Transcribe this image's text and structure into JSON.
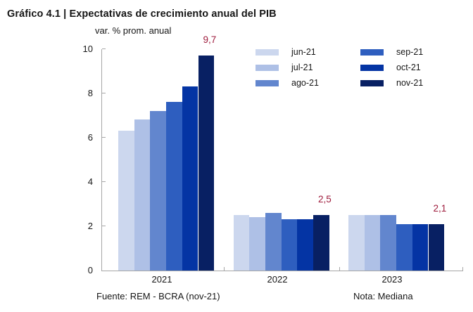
{
  "title": "Gráfico 4.1 | Expectativas de crecimiento anual del PIB",
  "subtitle": "var. % prom. anual",
  "footer": {
    "source": "Fuente: REM - BCRA (nov-21)",
    "note": "Nota: Mediana"
  },
  "colors": {
    "series": [
      "#ccd7ee",
      "#aec0e6",
      "#6286ce",
      "#2e5ebf",
      "#0434a4",
      "#082063"
    ],
    "annotation": "#9e1b3c",
    "axis": "#a6a6a6",
    "text": "#161616"
  },
  "chart_data": {
    "type": "bar",
    "title": "Gráfico 4.1 | Expectativas de crecimiento anual del PIB",
    "ylabel": "var. % prom. anual",
    "categories": [
      "2021",
      "2022",
      "2023"
    ],
    "series": [
      {
        "name": "jun-21",
        "color": "#ccd7ee",
        "values": [
          6.3,
          2.5,
          2.5
        ]
      },
      {
        "name": "jul-21",
        "color": "#aec0e6",
        "values": [
          6.8,
          2.4,
          2.5
        ]
      },
      {
        "name": "ago-21",
        "color": "#6286ce",
        "values": [
          7.2,
          2.6,
          2.5
        ]
      },
      {
        "name": "sep-21",
        "color": "#2e5ebf",
        "values": [
          7.6,
          2.3,
          2.1
        ]
      },
      {
        "name": "oct-21",
        "color": "#0434a4",
        "values": [
          8.3,
          2.3,
          2.1
        ]
      },
      {
        "name": "nov-21",
        "color": "#082063",
        "values": [
          9.7,
          2.5,
          2.1
        ]
      }
    ],
    "annotations": [
      {
        "text": "9,7",
        "value": 9.7,
        "category": "2021",
        "series": "nov-21"
      },
      {
        "text": "2,5",
        "value": 2.5,
        "category": "2022",
        "series": "nov-21"
      },
      {
        "text": "2,1",
        "value": 2.1,
        "category": "2023",
        "series": "nov-21"
      }
    ],
    "y_axis": {
      "min": 0,
      "max": 10,
      "step": 2,
      "ticks": [
        "0",
        "2",
        "4",
        "6",
        "8",
        "10"
      ]
    },
    "legend_position": "top-right",
    "legend_columns": [
      [
        "jun-21",
        "jul-21",
        "ago-21"
      ],
      [
        "sep-21",
        "oct-21",
        "nov-21"
      ]
    ],
    "grid": false
  }
}
